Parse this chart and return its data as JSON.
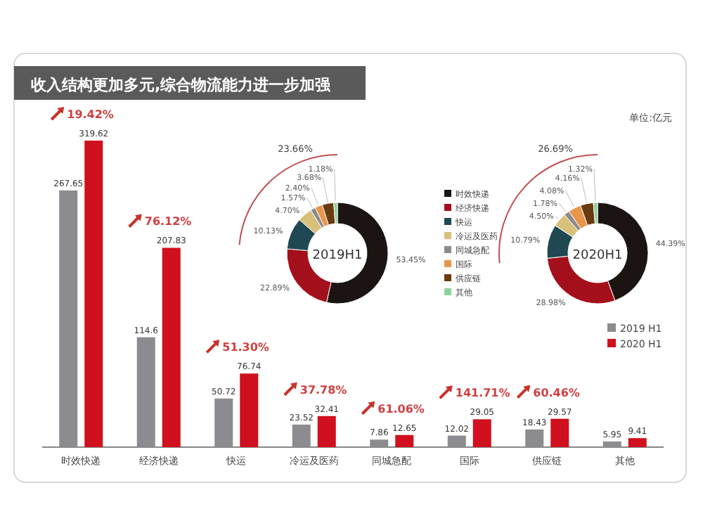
{
  "chart_data": [
    {
      "type": "bar",
      "title": "收入结构更加多元,综合物流能力进一步加强",
      "categories": [
        "时效快递",
        "经济快递",
        "快运",
        "冷运及医药",
        "同城急配",
        "国际",
        "供应链",
        "其他"
      ],
      "series": [
        {
          "name": "2019 H1",
          "color": "#8c8c90",
          "values": [
            267.65,
            114.6,
            50.72,
            23.52,
            7.86,
            12.02,
            18.43,
            5.95
          ]
        },
        {
          "name": "2020 H1",
          "color": "#d0101e",
          "values": [
            319.62,
            207.83,
            76.74,
            32.41,
            12.65,
            29.05,
            29.57,
            9.41
          ]
        }
      ],
      "data_labels": true,
      "legend": "right",
      "annotations": [
        "单位:亿元",
        "19.42%",
        "76.12%",
        "51.30%",
        "37.78%",
        "61.06%",
        "141.71%",
        "60.46%"
      ]
    },
    {
      "type": "donut",
      "title": "2019H1",
      "categories": [
        "时效快递",
        "经济快递",
        "快运",
        "冷运及医药",
        "同城急配",
        "国际",
        "供应链",
        "其他"
      ],
      "values": [
        53.45,
        22.89,
        10.13,
        4.7,
        1.57,
        2.4,
        3.68,
        1.18
      ],
      "colors": [
        "#1c1412",
        "#a3101c",
        "#1f4853",
        "#d8c07a",
        "#8b8b8b",
        "#e8964c",
        "#6a3a10",
        "#8fd19b"
      ],
      "value_labels": [
        "53.45%",
        "22.89%",
        "10.13%",
        "4.70%",
        "1.57%",
        "2.40%",
        "3.68%",
        "1.18%"
      ],
      "legend": "right",
      "annotations": [
        "23.66%"
      ]
    },
    {
      "type": "donut",
      "title": "2020H1",
      "categories": [
        null,
        null,
        null,
        null,
        null,
        null,
        null,
        null
      ],
      "values": [
        44.39,
        28.98,
        10.79,
        4.5,
        1.78,
        4.08,
        4.16,
        1.32
      ],
      "colors": [
        "#1c1412",
        "#a3101c",
        "#1f4853",
        "#d8c07a",
        "#8b8b8b",
        "#e8964c",
        "#6a3a10",
        "#8fd19b"
      ],
      "value_labels": [
        "44.39%",
        "28.98%",
        "10.79%",
        "4.50%",
        "1.78%",
        "4.08%",
        "4.16%",
        "1.32%"
      ],
      "annotations": [
        "26.69%"
      ]
    }
  ]
}
